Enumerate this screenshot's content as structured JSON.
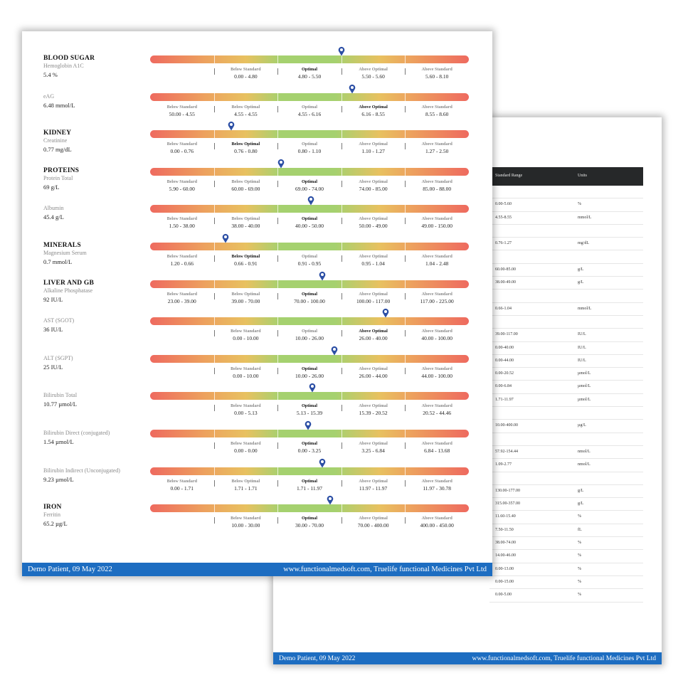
{
  "footer": {
    "left": "Demo Patient, 09 May 2022",
    "right": "www.functionalmedsoft.com, Truelife functional Medicines Pvt Ltd"
  },
  "back_table": {
    "headers": [
      "Standard Range",
      "Units"
    ],
    "rows": [
      {
        "range": "",
        "unit": ""
      },
      {
        "range": "0.00-5.60",
        "unit": "%"
      },
      {
        "range": "4.55-8.55",
        "unit": "mmol/L"
      },
      {
        "range": "",
        "unit": ""
      },
      {
        "range": "0.76-1.27",
        "unit": "mg/dL"
      },
      {
        "range": "",
        "unit": ""
      },
      {
        "range": "60.00-85.00",
        "unit": "g/L"
      },
      {
        "range": "38.00-49.00",
        "unit": "g/L"
      },
      {
        "range": "",
        "unit": ""
      },
      {
        "range": "0.66-1.04",
        "unit": "mmol/L"
      },
      {
        "range": "",
        "unit": ""
      },
      {
        "range": "39.00-117.00",
        "unit": "IU/L"
      },
      {
        "range": "0.00-40.00",
        "unit": "IU/L"
      },
      {
        "range": "0.00-44.00",
        "unit": "IU/L"
      },
      {
        "range": "0.00-20.52",
        "unit": "µmol/L"
      },
      {
        "range": "0.00-6.84",
        "unit": "µmol/L"
      },
      {
        "range": "1.71-11.97",
        "unit": "µmol/L"
      },
      {
        "range": "",
        "unit": ""
      },
      {
        "range": "10.00-400.00",
        "unit": "µg/L"
      },
      {
        "range": "",
        "unit": ""
      },
      {
        "range": "57.92-154.44",
        "unit": "nmol/L"
      },
      {
        "range": "1.09-2.77",
        "unit": "nmol/L"
      },
      {
        "range": "",
        "unit": ""
      },
      {
        "range": "130.00-177.00",
        "unit": "g/L"
      },
      {
        "range": "315.00-357.00",
        "unit": "g/L"
      },
      {
        "range": "11.60-15.40",
        "unit": "%"
      },
      {
        "range": "7.50-11.50",
        "unit": "fL"
      },
      {
        "range": "38.00-74.00",
        "unit": "%"
      },
      {
        "range": "14.00-46.00",
        "unit": "%"
      },
      {
        "range": "0.00-13.00",
        "unit": "%"
      },
      {
        "range": "0.00-15.00",
        "unit": "%"
      },
      {
        "range": "0.00-5.00",
        "unit": "%"
      }
    ]
  },
  "tests": [
    {
      "section": "BLOOD SUGAR",
      "name": "Hemoglobin A1C",
      "value": "5.4 %",
      "marker": 0.6,
      "active": 2,
      "labels": [
        {
          "slot": 1,
          "name": "Below Standard",
          "range": "0.00 - 4.80"
        },
        {
          "slot": 2,
          "name": "Optimal",
          "range": "4.80 - 5.50"
        },
        {
          "slot": 3,
          "name": "Above Optimal",
          "range": "5.50 - 5.60"
        },
        {
          "slot": 4,
          "name": "Above Standard",
          "range": "5.60 - 8.10"
        }
      ]
    },
    {
      "section": "",
      "name": "eAG",
      "value": "6.48 mmol/L",
      "marker": 0.635,
      "active": 3,
      "labels": [
        {
          "slot": 0,
          "name": "Below Standard",
          "range": "50.00 - 4.55"
        },
        {
          "slot": 1,
          "name": "Below Optimal",
          "range": "4.55 - 4.55"
        },
        {
          "slot": 2,
          "name": "Optimal",
          "range": "4.55 - 6.16"
        },
        {
          "slot": 3,
          "name": "Above Optimal",
          "range": "6.16 - 8.55"
        },
        {
          "slot": 4,
          "name": "Above Standard",
          "range": "8.55 - 8.60"
        }
      ]
    },
    {
      "section": "KIDNEY",
      "name": "Creatinine",
      "value": "0.77 mg/dL",
      "marker": 0.255,
      "active": 1,
      "labels": [
        {
          "slot": 0,
          "name": "Below Standard",
          "range": "0.00 - 0.76"
        },
        {
          "slot": 1,
          "name": "Below Optimal",
          "range": "0.76 - 0.80"
        },
        {
          "slot": 2,
          "name": "Optimal",
          "range": "0.80 - 1.10"
        },
        {
          "slot": 3,
          "name": "Above Optimal",
          "range": "1.10 - 1.27"
        },
        {
          "slot": 4,
          "name": "Above Standard",
          "range": "1.27 - 2.50"
        }
      ]
    },
    {
      "section": "PROTEINS",
      "name": "Protein Total",
      "value": "69 g/L",
      "marker": 0.41,
      "active": 2,
      "labels": [
        {
          "slot": 0,
          "name": "Below Standard",
          "range": "5.90 - 60.00"
        },
        {
          "slot": 1,
          "name": "Below Optimal",
          "range": "60.00 - 69.00"
        },
        {
          "slot": 2,
          "name": "Optimal",
          "range": "69.00 - 74.00"
        },
        {
          "slot": 3,
          "name": "Above Optimal",
          "range": "74.00 - 85.00"
        },
        {
          "slot": 4,
          "name": "Above Standard",
          "range": "85.00 - 88.00"
        }
      ]
    },
    {
      "section": "",
      "name": "Albumin",
      "value": "45.4 g/L",
      "marker": 0.505,
      "active": 2,
      "labels": [
        {
          "slot": 0,
          "name": "Below Standard",
          "range": "1.50 - 38.00"
        },
        {
          "slot": 1,
          "name": "Below Optimal",
          "range": "38.00 - 40.00"
        },
        {
          "slot": 2,
          "name": "Optimal",
          "range": "40.00 - 50.00"
        },
        {
          "slot": 3,
          "name": "Above Optimal",
          "range": "50.00 - 49.00"
        },
        {
          "slot": 4,
          "name": "Above Standard",
          "range": "49.00 - 150.00"
        }
      ]
    },
    {
      "section": "MINERALS",
      "name": "Magnesium Serum",
      "value": "0.7 mmol/L",
      "marker": 0.237,
      "active": 1,
      "labels": [
        {
          "slot": 0,
          "name": "Below Standard",
          "range": "1.20 - 0.66"
        },
        {
          "slot": 1,
          "name": "Below Optimal",
          "range": "0.66 - 0.91"
        },
        {
          "slot": 2,
          "name": "Optimal",
          "range": "0.91 - 0.95"
        },
        {
          "slot": 3,
          "name": "Above Optimal",
          "range": "0.95 - 1.04"
        },
        {
          "slot": 4,
          "name": "Above Standard",
          "range": "1.04 - 2.48"
        }
      ]
    },
    {
      "section": "LIVER AND GB",
      "name": "Alkaline Phosphatase",
      "value": "92 IU/L",
      "marker": 0.54,
      "active": 2,
      "labels": [
        {
          "slot": 0,
          "name": "Below Standard",
          "range": "23.00 - 39.00"
        },
        {
          "slot": 1,
          "name": "Below Optimal",
          "range": "39.00 - 70.00"
        },
        {
          "slot": 2,
          "name": "Optimal",
          "range": "70.00 - 100.00"
        },
        {
          "slot": 3,
          "name": "Above Optimal",
          "range": "100.00 - 117.00"
        },
        {
          "slot": 4,
          "name": "Above Standard",
          "range": "117.00 - 225.00"
        }
      ]
    },
    {
      "section": "",
      "name": "AST (SGOT)",
      "value": "36 IU/L",
      "marker": 0.738,
      "active": 3,
      "labels": [
        {
          "slot": 1,
          "name": "Below Standard",
          "range": "0.00 - 10.00"
        },
        {
          "slot": 2,
          "name": "Optimal",
          "range": "10.00 - 26.00"
        },
        {
          "slot": 3,
          "name": "Above Optimal",
          "range": "26.00 - 40.00"
        },
        {
          "slot": 4,
          "name": "Above Standard",
          "range": "40.00 - 100.00"
        }
      ]
    },
    {
      "section": "",
      "name": "ALT (SGPT)",
      "value": "25 IU/L",
      "marker": 0.578,
      "active": 2,
      "labels": [
        {
          "slot": 1,
          "name": "Below Standard",
          "range": "0.00 - 10.00"
        },
        {
          "slot": 2,
          "name": "Optimal",
          "range": "10.00 - 26.00"
        },
        {
          "slot": 3,
          "name": "Above Optimal",
          "range": "26.00 - 44.00"
        },
        {
          "slot": 4,
          "name": "Above Standard",
          "range": "44.00 - 100.00"
        }
      ]
    },
    {
      "section": "",
      "name": "Bilirubin Total",
      "value": "10.77 µmol/L",
      "marker": 0.508,
      "active": 2,
      "labels": [
        {
          "slot": 1,
          "name": "Below Standard",
          "range": "0.00 - 5.13"
        },
        {
          "slot": 2,
          "name": "Optimal",
          "range": "5.13 - 15.39"
        },
        {
          "slot": 3,
          "name": "Above Optimal",
          "range": "15.39 - 20.52"
        },
        {
          "slot": 4,
          "name": "Above Standard",
          "range": "20.52 - 44.46"
        }
      ]
    },
    {
      "section": "",
      "name": "Bilirubin Direct (conjugated)",
      "value": "1.54 µmol/L",
      "marker": 0.495,
      "active": 2,
      "labels": [
        {
          "slot": 1,
          "name": "Below Standard",
          "range": "0.00 - 0.00"
        },
        {
          "slot": 2,
          "name": "Optimal",
          "range": "0.00 - 3.25"
        },
        {
          "slot": 3,
          "name": "Above Optimal",
          "range": "3.25 - 6.84"
        },
        {
          "slot": 4,
          "name": "Above Standard",
          "range": "6.84 - 13.68"
        }
      ]
    },
    {
      "section": "",
      "name": "Bilirubin Indirect (Unconjugated)",
      "value": "9.23 µmol/L",
      "marker": 0.54,
      "active": 2,
      "labels": [
        {
          "slot": 0,
          "name": "Below Standard",
          "range": "0.00 - 1.71"
        },
        {
          "slot": 1,
          "name": "Below Optimal",
          "range": "1.71 - 1.71"
        },
        {
          "slot": 2,
          "name": "Optimal",
          "range": "1.71 - 11.97"
        },
        {
          "slot": 3,
          "name": "Above Optimal",
          "range": "11.97 - 11.97"
        },
        {
          "slot": 4,
          "name": "Above Standard",
          "range": "11.97 - 30.78"
        }
      ]
    },
    {
      "section": "IRON",
      "name": "Ferritin",
      "value": "65.2 µg/L",
      "marker": 0.565,
      "active": 2,
      "labels": [
        {
          "slot": 1,
          "name": "Below Standard",
          "range": "10.00 - 30.00"
        },
        {
          "slot": 2,
          "name": "Optimal",
          "range": "30.00 - 70.00"
        },
        {
          "slot": 3,
          "name": "Above Optimal",
          "range": "70.00 - 400.00"
        },
        {
          "slot": 4,
          "name": "Above Standard",
          "range": "400.00 - 450.00"
        }
      ]
    }
  ]
}
